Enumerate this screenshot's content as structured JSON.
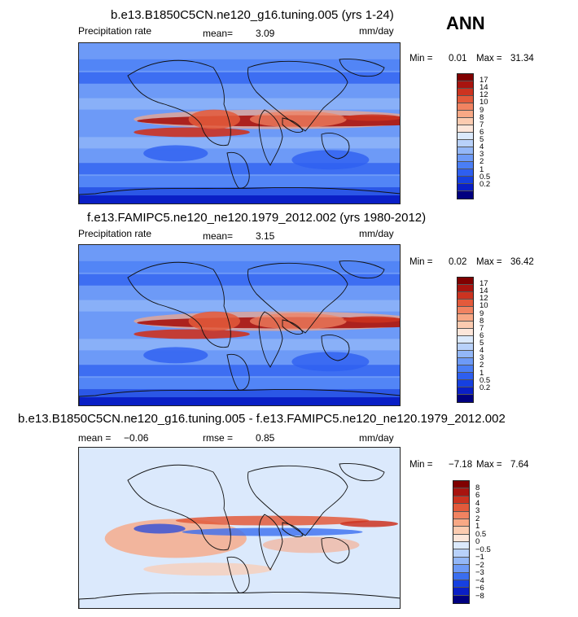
{
  "season_label": "ANN",
  "colors": {
    "precip_scale": [
      "#000080",
      "#0a1fc6",
      "#1640e0",
      "#2e5ff0",
      "#4a7ef5",
      "#6d9af7",
      "#93b7f8",
      "#b8d1fa",
      "#dbe9fc",
      "#fde6da",
      "#fccbb0",
      "#f8a885",
      "#f18361",
      "#e35a3b",
      "#cc3320",
      "#a8140f",
      "#800000"
    ],
    "diff_scale": [
      "#000080",
      "#0a1fc6",
      "#1640e0",
      "#3a6ef0",
      "#6d9af7",
      "#93b7f8",
      "#b8d1fa",
      "#dbe9fc",
      "#fde6da",
      "#fccbb0",
      "#f8a885",
      "#f18361",
      "#e35a3b",
      "#cc3320",
      "#a8140f",
      "#800000"
    ]
  },
  "chart_data": [
    {
      "type": "heatmap",
      "title": "b.e13.B1850C5CN.ne120_g16.tuning.005 (yrs 1-24)",
      "variable": "Precipitation rate",
      "mean_label": "mean=",
      "mean": "3.09",
      "units": "mm/day",
      "min_label": "Min =",
      "min": "0.01",
      "max_label": "Max =",
      "max": "31.34",
      "colorbar_levels": [
        "17",
        "14",
        "12",
        "10",
        "9",
        "8",
        "7",
        "6",
        "5",
        "4",
        "3",
        "2",
        "1",
        "0.5",
        "0.2"
      ]
    },
    {
      "type": "heatmap",
      "title": "f.e13.FAMIPC5.ne120_ne120.1979_2012.002 (yrs 1980-2012)",
      "variable": "Precipitation rate",
      "mean_label": "mean=",
      "mean": "3.15",
      "units": "mm/day",
      "min_label": "Min =",
      "min": "0.02",
      "max_label": "Max =",
      "max": "36.42",
      "colorbar_levels": [
        "17",
        "14",
        "12",
        "10",
        "9",
        "8",
        "7",
        "6",
        "5",
        "4",
        "3",
        "2",
        "1",
        "0.5",
        "0.2"
      ]
    },
    {
      "type": "heatmap",
      "title": "b.e13.B1850C5CN.ne120_g16.tuning.005 - f.e13.FAMIPC5.ne120_ne120.1979_2012.002",
      "mean_label": "mean =",
      "mean": "−0.06",
      "rmse_label": "rmse =",
      "rmse": "0.85",
      "units": "mm/day",
      "min_label": "Min =",
      "min": "−7.18",
      "max_label": "Max =",
      "max": "7.64",
      "colorbar_levels": [
        "8",
        "6",
        "4",
        "3",
        "2",
        "1",
        "0.5",
        "0",
        "−0.5",
        "−1",
        "−2",
        "−3",
        "−4",
        "−6",
        "−8"
      ]
    }
  ]
}
